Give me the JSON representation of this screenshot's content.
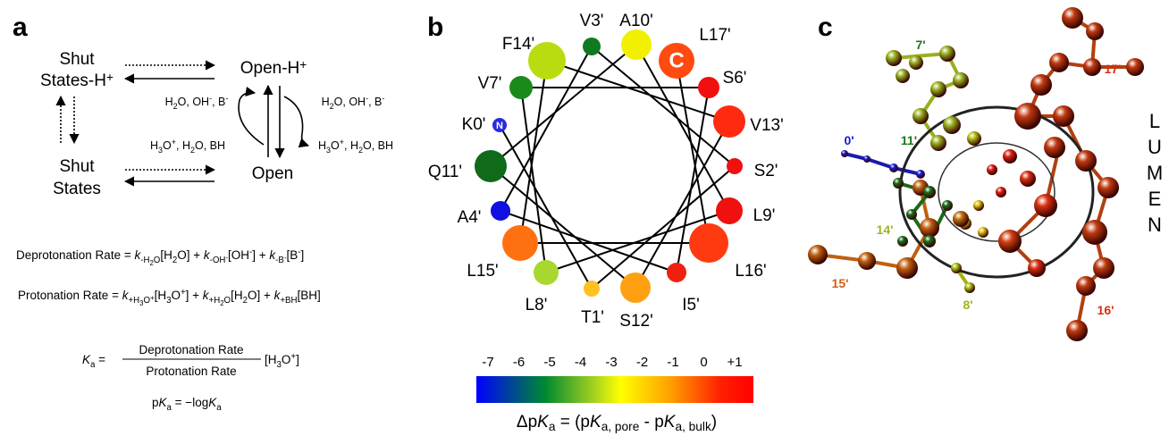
{
  "panel_a": {
    "label": "a",
    "shut_h": [
      "Shut",
      "States-H",
      "+"
    ],
    "open_h": [
      "Open-H",
      "+"
    ],
    "shut": [
      "Shut",
      "States"
    ],
    "open": "Open",
    "cond_upper_left": [
      "H",
      "2",
      "O, OH",
      "-",
      ", B",
      "-"
    ],
    "cond_upper_right": [
      "H",
      "2",
      "O, OH",
      "-",
      ", B",
      "-"
    ],
    "cond_lower_left": [
      "H",
      "3",
      "O",
      "+",
      ", H",
      "2",
      "O, BH"
    ],
    "cond_lower_right": [
      "H",
      "3",
      "O",
      "+",
      ", H",
      "2",
      "O, BH"
    ],
    "deprotonation": [
      "Deprotonation Rate = ",
      "k",
      "-H",
      "2",
      "O",
      "[H",
      "2",
      "O] + ",
      "k",
      "-OH",
      "-",
      "[OH",
      "-",
      "] + ",
      "k",
      "-B",
      "-",
      "[B",
      "-",
      "]"
    ],
    "protonation": [
      "Protonation Rate = ",
      "k",
      "+H",
      "3",
      "O",
      "+",
      "[H",
      "3",
      "O",
      "+",
      "] + ",
      "k",
      "+H",
      "2",
      "O",
      "[H",
      "2",
      "O] + ",
      "k",
      "+BH",
      "[BH]"
    ],
    "ka_left": [
      "K",
      "a",
      " ="
    ],
    "ka_numerator": "Deprotonation Rate",
    "ka_denominator": "Protonation Rate",
    "ka_right": [
      "[H",
      "3",
      "O",
      "+",
      "]"
    ],
    "pka": [
      "p",
      "K",
      "a",
      " = −log",
      "K",
      "a"
    ]
  },
  "panel_b": {
    "label": "b",
    "n_terminus": "N",
    "c_terminus": "C",
    "residues": [
      {
        "label": "K0'",
        "color": "#2a2ae0"
      },
      {
        "label": "T1'",
        "color": "#ffc020"
      },
      {
        "label": "S2'",
        "color": "#f01010"
      },
      {
        "label": "V3'",
        "color": "#107a20"
      },
      {
        "label": "A4'",
        "color": "#1010e0"
      },
      {
        "label": "I5'",
        "color": "#f02010"
      },
      {
        "label": "S6'",
        "color": "#f01010"
      },
      {
        "label": "V7'",
        "color": "#1a8a1a"
      },
      {
        "label": "L8'",
        "color": "#a8d830"
      },
      {
        "label": "L9'",
        "color": "#f01010"
      },
      {
        "label": "A10'",
        "color": "#f0f000"
      },
      {
        "label": "Q11'",
        "color": "#0f6a1a"
      },
      {
        "label": "S12'",
        "color": "#ffa010"
      },
      {
        "label": "V13'",
        "color": "#ff2a10"
      },
      {
        "label": "F14'",
        "color": "#b8dc10"
      },
      {
        "label": "L15'",
        "color": "#ff7010"
      },
      {
        "label": "L16'",
        "color": "#ff3a10"
      },
      {
        "label": "L17'",
        "color": "#ff4a10"
      }
    ],
    "colorbar_ticks": [
      "-7",
      "-6",
      "-5",
      "-4",
      "-3",
      "-2",
      "-1",
      "0",
      "+1"
    ],
    "colorbar_label": [
      "Δp",
      "K",
      "a",
      " = (p",
      "K",
      "a, pore",
      " - p",
      "K",
      "a, bulk",
      ")"
    ]
  },
  "panel_c": {
    "label": "c",
    "residues": [
      {
        "label": "0'",
        "color": "#1a1ad0"
      },
      {
        "label": "7'",
        "color": "#1a7a1a"
      },
      {
        "label": "11'",
        "color": "#1a7a1a"
      },
      {
        "label": "14'",
        "color": "#9ab820"
      },
      {
        "label": "15'",
        "color": "#d06010"
      },
      {
        "label": "8'",
        "color": "#9ab820"
      },
      {
        "label": "17'",
        "color": "#d83010"
      },
      {
        "label": "16'",
        "color": "#d83010"
      }
    ],
    "lumen": [
      "L",
      "U",
      "M",
      "E",
      "N"
    ]
  }
}
